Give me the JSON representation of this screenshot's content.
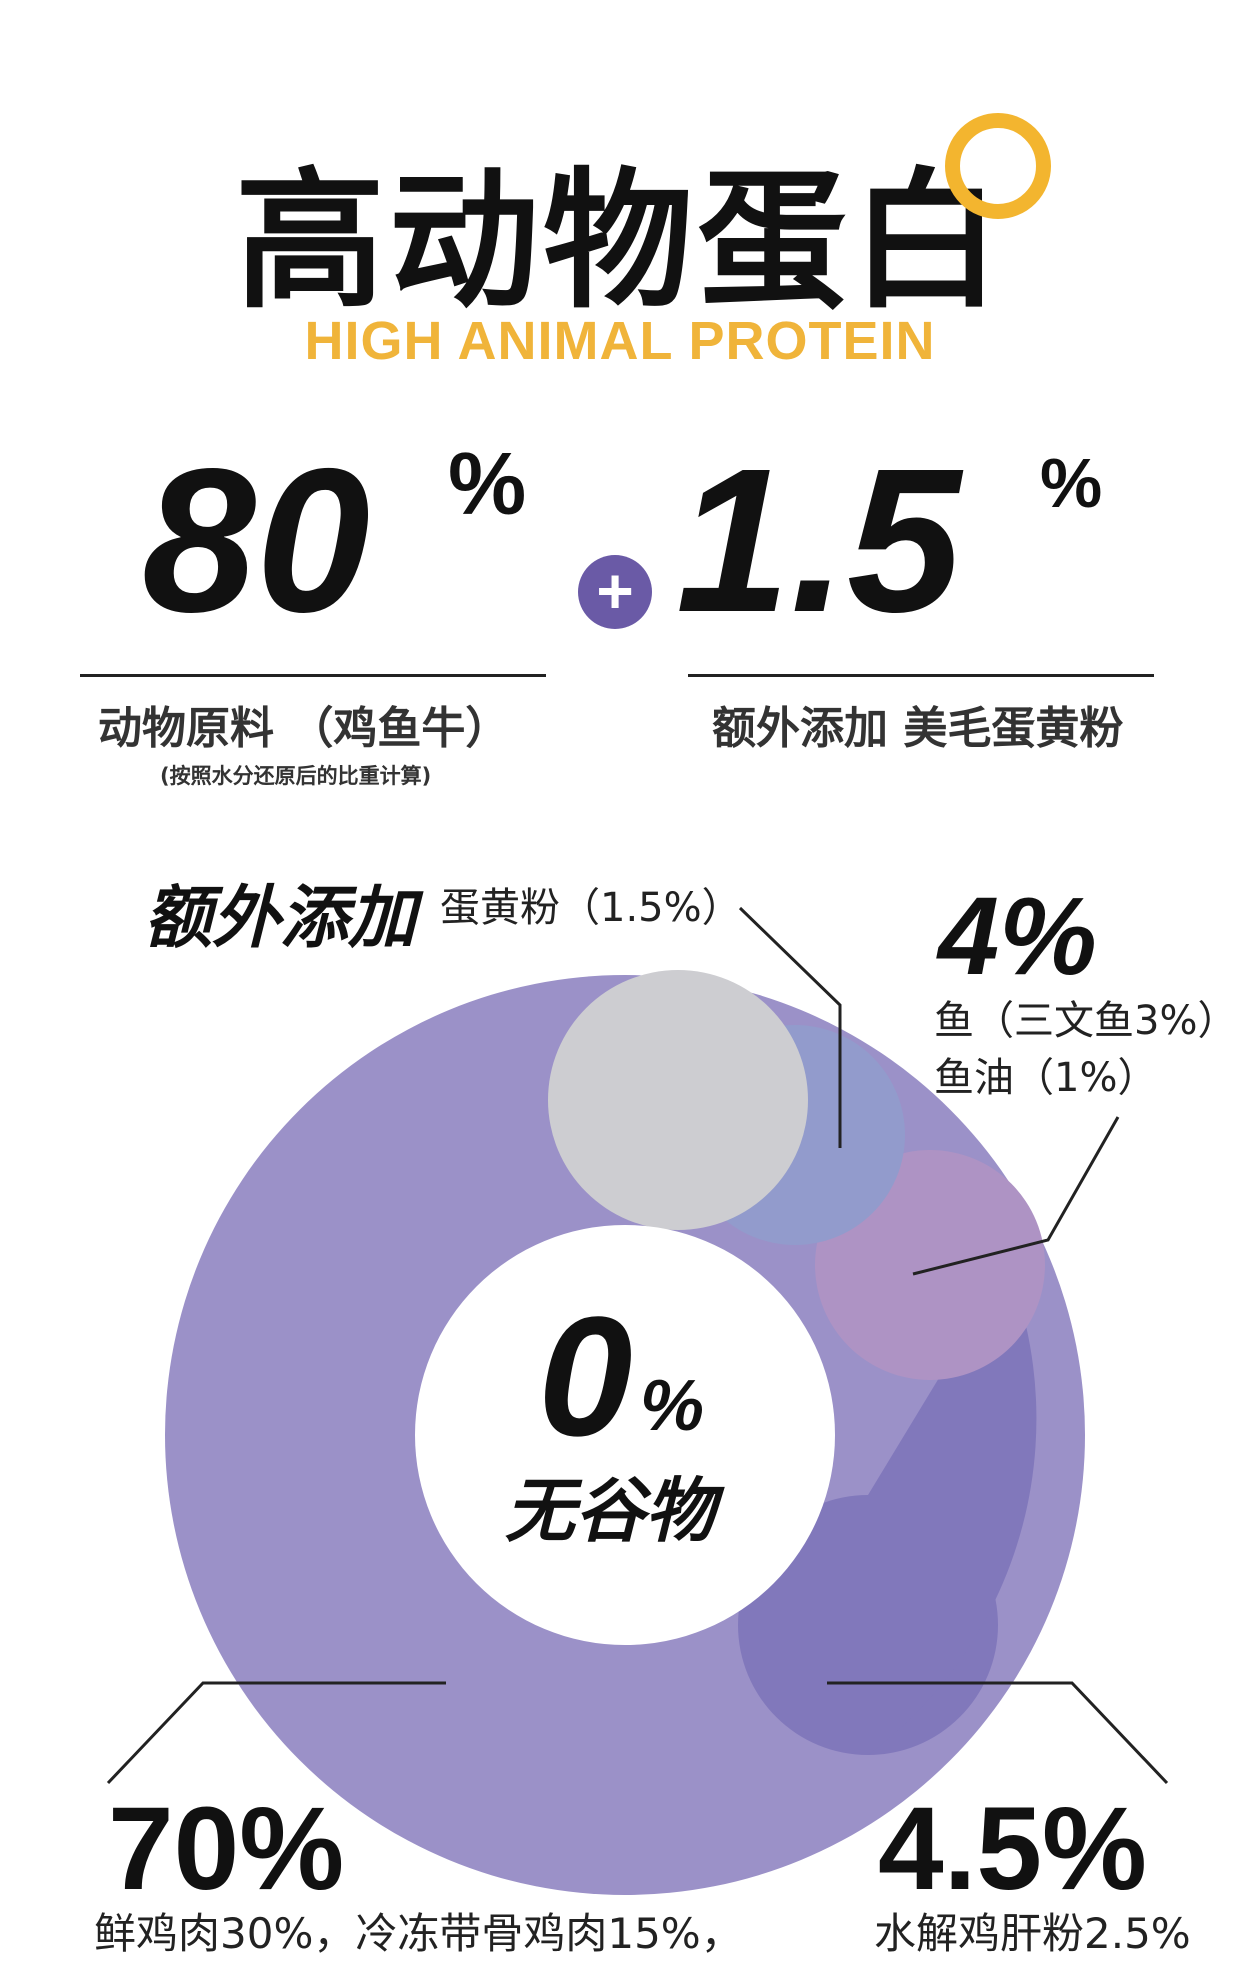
{
  "header": {
    "title": "高动物蛋白",
    "subtitle": "HIGH ANIMAL PROTEIN"
  },
  "stats": [
    {
      "value": "80",
      "unit": "%",
      "label": "动物原料 （鸡鱼牛）",
      "note": "(按照水分还原后的比重计算)"
    },
    {
      "value": "1.5",
      "unit": "%",
      "label": "额外添加 美毛蛋黄粉"
    }
  ],
  "plus_symbol": "+",
  "center": {
    "value": "0",
    "unit": "%",
    "label": "无谷物"
  },
  "annotations": {
    "egg": {
      "bold": "额外添加",
      "text": "蛋黄粉（1.5%）"
    },
    "fish": {
      "value": "4%",
      "line1": "鱼（三文鱼3%）",
      "line2": "鱼油（1%）"
    },
    "chicken": {
      "value": "70%",
      "text": "鲜鸡肉30%，冷冻带骨鸡肉15%，"
    },
    "liver": {
      "value": "4.5%",
      "text": "水解鸡肝粉2.5%"
    }
  },
  "colors": {
    "accent": "#f3b52f",
    "plus": "#6a5aa6",
    "chicken": "#9b91c8",
    "liver": "#8178bb",
    "fish": "#ae93c4",
    "blue": "#929bcc",
    "egg": "#cdcdd1"
  }
}
